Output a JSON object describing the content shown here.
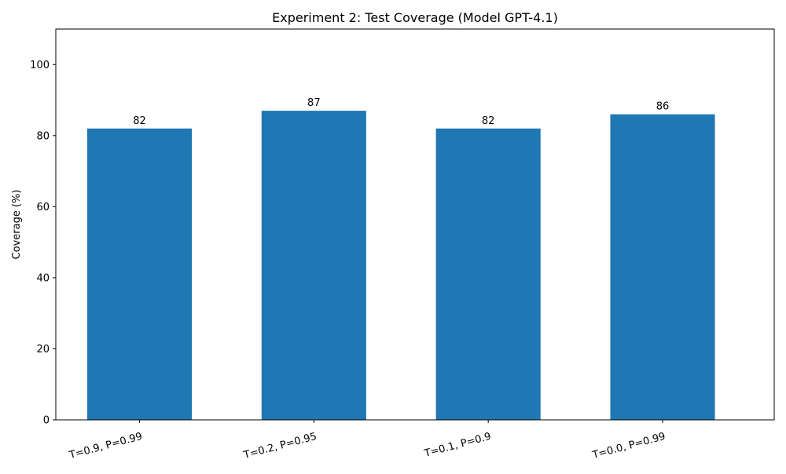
{
  "chart_data": {
    "type": "bar",
    "title": "Experiment 2: Test Coverage (Model GPT-4.1)",
    "xlabel": "",
    "ylabel": "Coverage (%)",
    "categories": [
      "T=0.9, P=0.99",
      "T=0.2, P=0.95",
      "T=0.1, P=0.9",
      "T=0.0, P=0.99"
    ],
    "values": [
      82,
      87,
      82,
      86
    ],
    "data_labels": [
      "82",
      "87",
      "82",
      "86"
    ],
    "ylim": [
      0,
      110
    ],
    "yticks": [
      0,
      20,
      40,
      60,
      80,
      100
    ],
    "ytick_labels": [
      "0",
      "20",
      "40",
      "60",
      "80",
      "100"
    ],
    "grid": false,
    "legend": "none",
    "x_tick_rotation_deg": 15,
    "colors": {
      "bar": "#1f77b4",
      "axis": "#000000",
      "text": "#000000",
      "background": "#ffffff"
    }
  }
}
